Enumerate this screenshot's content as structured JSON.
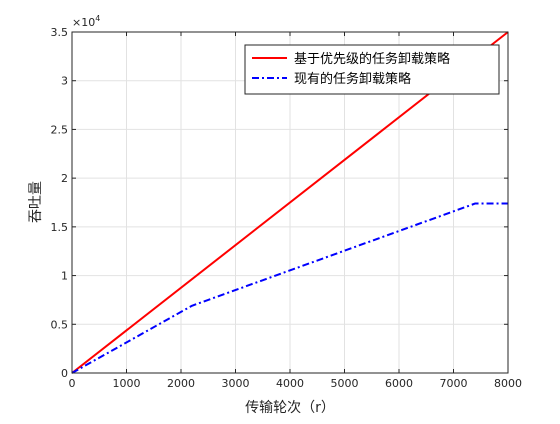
{
  "chart_data": {
    "type": "line",
    "xlabel": "传输轮次（r）",
    "ylabel": "吞吐量",
    "y_exponent_text": "×10",
    "y_exponent_power": "4",
    "xlim": [
      0,
      8000
    ],
    "ylim": [
      0,
      35000
    ],
    "xticks": [
      0,
      1000,
      2000,
      3000,
      4000,
      5000,
      6000,
      7000,
      8000
    ],
    "xtick_labels": [
      "0",
      "1000",
      "2000",
      "3000",
      "4000",
      "5000",
      "6000",
      "7000",
      "8000"
    ],
    "yticks": [
      0,
      5000,
      10000,
      15000,
      20000,
      25000,
      30000,
      35000
    ],
    "ytick_labels": [
      "0",
      "0.5",
      "1",
      "1.5",
      "2",
      "2.5",
      "3",
      "3.5"
    ],
    "grid": true,
    "legend_position": "top-right",
    "series": [
      {
        "name": "基于优先级的任务卸载策略",
        "color": "#ff0000",
        "style": "solid",
        "points": [
          [
            0,
            0
          ],
          [
            8000,
            35000
          ]
        ]
      },
      {
        "name": "现有的任务卸载策略",
        "color": "#0000ff",
        "style": "dashdot",
        "points": [
          [
            0,
            0
          ],
          [
            2200,
            6900
          ],
          [
            7400,
            17400
          ],
          [
            8000,
            17400
          ]
        ]
      }
    ]
  }
}
